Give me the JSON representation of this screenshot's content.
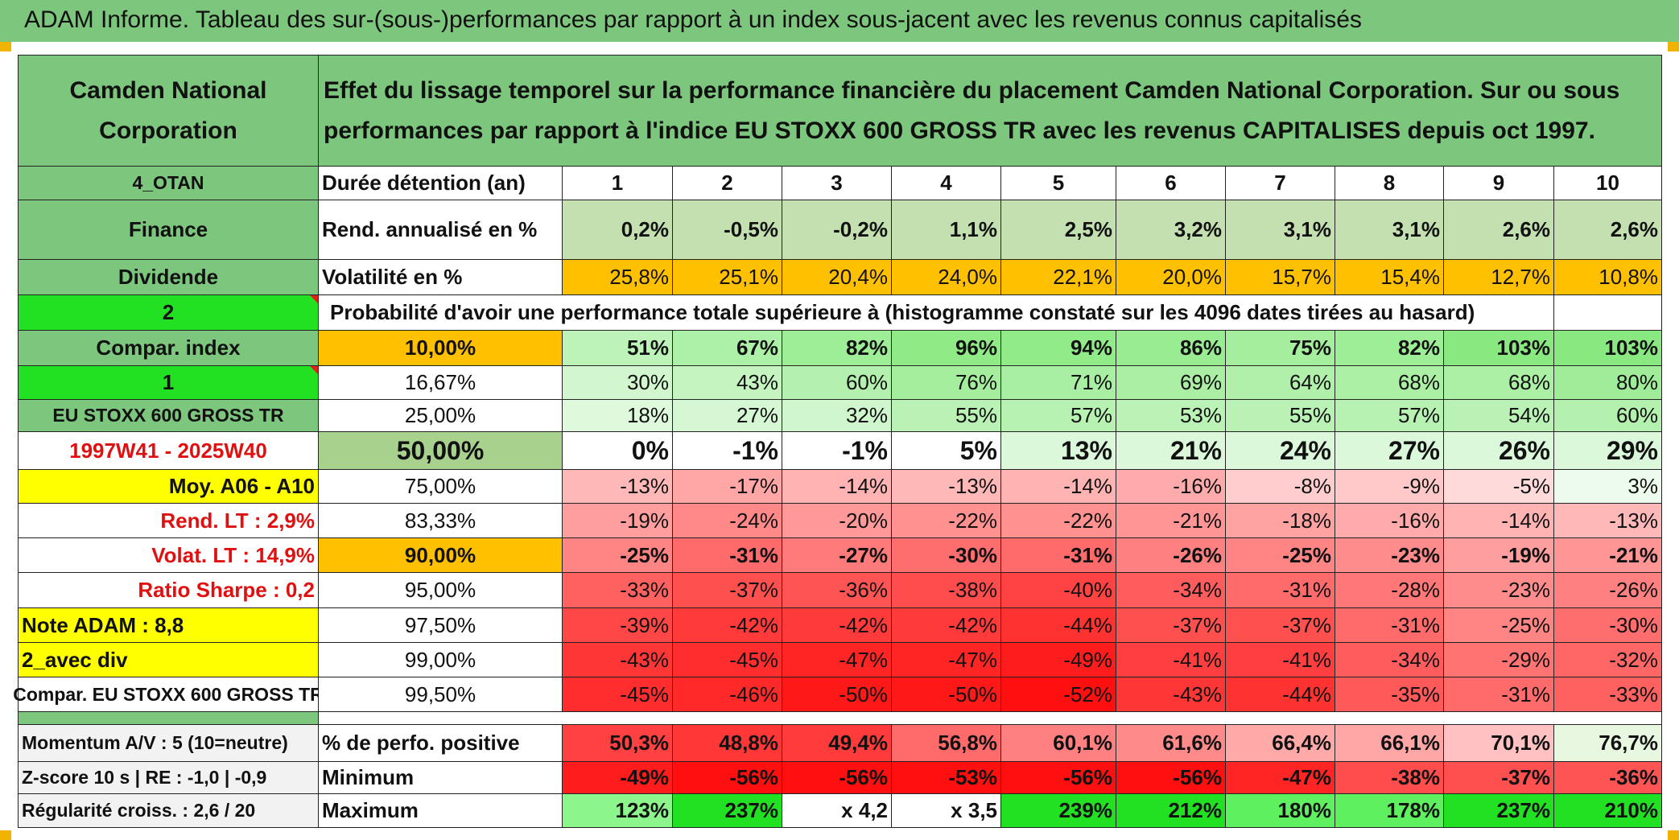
{
  "title": "ADAM Informe. Tableau des sur-(sous-)performances par rapport à un index sous-jacent avec les revenus connus capitalisés",
  "company": "Camden National Corporation",
  "description": "Effet du lissage temporel sur la performance financière du placement Camden National Corporation. Sur ou sous performances par rapport à l'indice EU STOXX 600 GROSS TR avec les revenus CAPITALISES depuis oct 1997.",
  "left": {
    "code": "4_OTAN",
    "sector": "Finance",
    "dividend": "Dividende",
    "two": "2",
    "compar_index": "Compar. index",
    "one": "1",
    "index_name": "EU STOXX 600 GROSS TR",
    "period": "1997W41 - 2025W40",
    "moy": "Moy. A06 - A10",
    "rend_lt": "Rend. LT :   2,9%",
    "volat_lt": "Volat. LT :   14,9%",
    "sharpe": "Ratio Sharpe :   0,2",
    "note": "Note ADAM : 8,8",
    "avec_div": "2_avec div",
    "compar_full": "Compar. EU STOXX 600 GROSS TR",
    "momentum": "Momentum A/V : 5 (10=neutre)",
    "zscore": "Z-score 10 s | RE : -1,0 | -0,9",
    "regularite": "Régularité croiss. : 2,6 / 20"
  },
  "header": {
    "duree_label": "Durée détention (an)",
    "years": [
      "1",
      "2",
      "3",
      "4",
      "5",
      "6",
      "7",
      "8",
      "9",
      "10"
    ],
    "rend_label": "Rend. annualisé en %",
    "rend": [
      "0,2%",
      "-0,5%",
      "-0,2%",
      "1,1%",
      "2,5%",
      "3,2%",
      "3,1%",
      "3,1%",
      "2,6%",
      "2,6%"
    ],
    "vol_label": "Volatilité en %",
    "vol": [
      "25,8%",
      "25,1%",
      "20,4%",
      "24,0%",
      "22,1%",
      "20,0%",
      "15,7%",
      "15,4%",
      "12,7%",
      "10,8%"
    ],
    "prob_label": "Probabilité d'avoir une performance totale supérieure à (histogramme constaté sur les 4096 dates tirées au hasard)"
  },
  "percentiles": [
    {
      "label": "10,00%",
      "values": [
        "51%",
        "67%",
        "82%",
        "96%",
        "94%",
        "86%",
        "75%",
        "82%",
        "103%",
        "103%"
      ]
    },
    {
      "label": "16,67%",
      "values": [
        "30%",
        "43%",
        "60%",
        "76%",
        "71%",
        "69%",
        "64%",
        "68%",
        "68%",
        "80%"
      ]
    },
    {
      "label": "25,00%",
      "values": [
        "18%",
        "27%",
        "32%",
        "55%",
        "57%",
        "53%",
        "55%",
        "57%",
        "54%",
        "60%"
      ]
    },
    {
      "label": "50,00%",
      "values": [
        "0%",
        "-1%",
        "-1%",
        "5%",
        "13%",
        "21%",
        "24%",
        "27%",
        "26%",
        "29%"
      ]
    },
    {
      "label": "75,00%",
      "values": [
        "-13%",
        "-17%",
        "-14%",
        "-13%",
        "-14%",
        "-16%",
        "-8%",
        "-9%",
        "-5%",
        "3%"
      ]
    },
    {
      "label": "83,33%",
      "values": [
        "-19%",
        "-24%",
        "-20%",
        "-22%",
        "-22%",
        "-21%",
        "-18%",
        "-16%",
        "-14%",
        "-13%"
      ]
    },
    {
      "label": "90,00%",
      "values": [
        "-25%",
        "-31%",
        "-27%",
        "-30%",
        "-31%",
        "-26%",
        "-25%",
        "-23%",
        "-19%",
        "-21%"
      ]
    },
    {
      "label": "95,00%",
      "values": [
        "-33%",
        "-37%",
        "-36%",
        "-38%",
        "-40%",
        "-34%",
        "-31%",
        "-28%",
        "-23%",
        "-26%"
      ]
    },
    {
      "label": "97,50%",
      "values": [
        "-39%",
        "-42%",
        "-42%",
        "-42%",
        "-44%",
        "-37%",
        "-37%",
        "-31%",
        "-25%",
        "-30%"
      ]
    },
    {
      "label": "99,00%",
      "values": [
        "-43%",
        "-45%",
        "-47%",
        "-47%",
        "-49%",
        "-41%",
        "-41%",
        "-34%",
        "-29%",
        "-32%"
      ]
    },
    {
      "label": "99,50%",
      "values": [
        "-45%",
        "-46%",
        "-50%",
        "-50%",
        "-52%",
        "-43%",
        "-44%",
        "-35%",
        "-31%",
        "-33%"
      ]
    }
  ],
  "stats": [
    {
      "label": "% de perfo. positive",
      "values": [
        "50,3%",
        "48,8%",
        "49,4%",
        "56,8%",
        "60,1%",
        "61,6%",
        "66,4%",
        "66,1%",
        "70,1%",
        "76,7%"
      ]
    },
    {
      "label": "Minimum",
      "values": [
        "-49%",
        "-56%",
        "-56%",
        "-53%",
        "-56%",
        "-56%",
        "-47%",
        "-38%",
        "-37%",
        "-36%"
      ]
    },
    {
      "label": "Maximum",
      "values": [
        "123%",
        "237%",
        "x 4,2",
        "x 3,5",
        "239%",
        "212%",
        "180%",
        "178%",
        "237%",
        "210%"
      ]
    }
  ],
  "colors": {
    "title_bar": "#7dc67d",
    "header_green": "#7dc67d",
    "bright_green": "#22e022",
    "orange": "#ffc000",
    "yellow": "#ffff00",
    "red_text": "#e01010",
    "rend_green": "#c4e0b0"
  }
}
